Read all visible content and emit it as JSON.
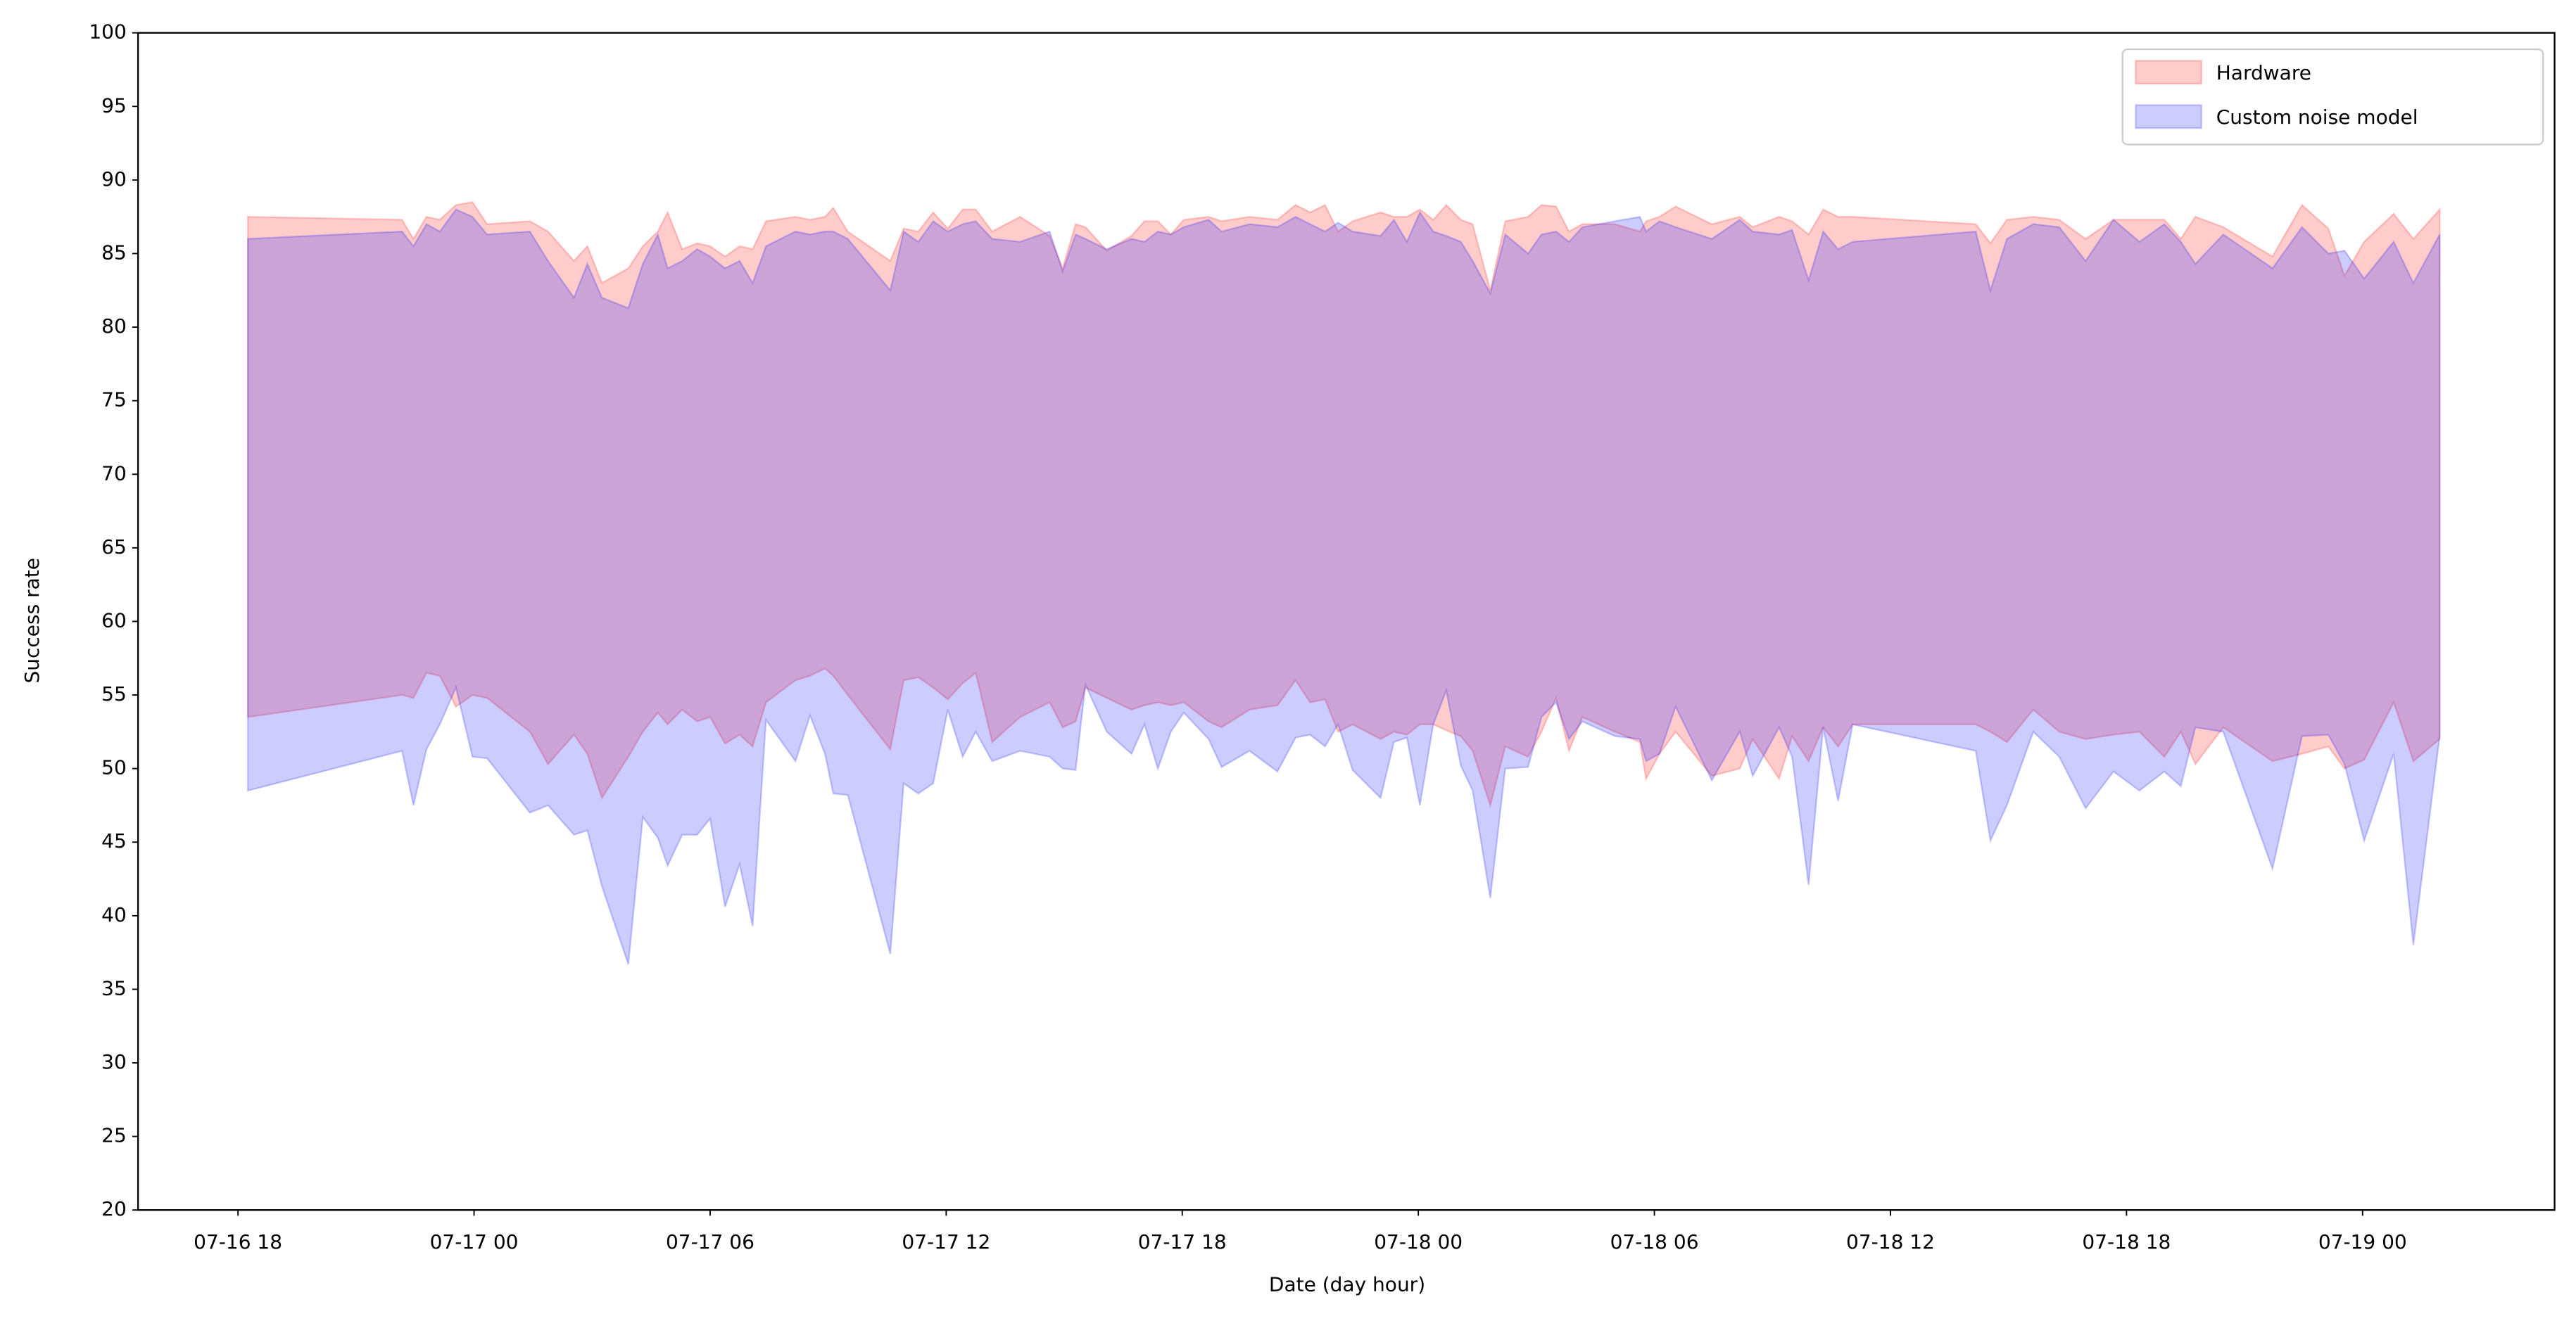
{
  "chart_data": {
    "type": "area-range",
    "xlabel": "Date (day hour)",
    "ylabel": "Success rate",
    "xlim": [
      15.46,
      76.88
    ],
    "ylim": [
      20,
      100
    ],
    "xticks": [
      {
        "value": 18,
        "label": "07-16 18"
      },
      {
        "value": 24,
        "label": "07-17 00"
      },
      {
        "value": 30,
        "label": "07-17 06"
      },
      {
        "value": 36,
        "label": "07-17 12"
      },
      {
        "value": 42,
        "label": "07-17 18"
      },
      {
        "value": 48,
        "label": "07-18 00"
      },
      {
        "value": 54,
        "label": "07-18 06"
      },
      {
        "value": 60,
        "label": "07-18 12"
      },
      {
        "value": 66,
        "label": "07-18 18"
      },
      {
        "value": 72,
        "label": "07-19 00"
      }
    ],
    "yticks": [
      20,
      25,
      30,
      35,
      40,
      45,
      50,
      55,
      60,
      65,
      70,
      75,
      80,
      85,
      90,
      95,
      100
    ],
    "legend": "upper right",
    "x": [
      18.25,
      22.17,
      22.46,
      22.79,
      23.13,
      23.54,
      23.96,
      24.33,
      25.42,
      25.88,
      26.54,
      26.88,
      27.25,
      27.92,
      28.29,
      28.67,
      28.92,
      29.29,
      29.67,
      30,
      30.38,
      30.75,
      31.08,
      31.42,
      32.17,
      32.54,
      32.92,
      33.13,
      33.5,
      34.58,
      34.92,
      35.29,
      35.67,
      36.04,
      36.42,
      36.75,
      37.17,
      37.88,
      38.63,
      38.96,
      39.29,
      39.54,
      40.08,
      40.71,
      41.04,
      41.38,
      41.71,
      42.04,
      42.67,
      43,
      43.71,
      44.42,
      44.88,
      45.25,
      45.63,
      45.96,
      46.33,
      47.04,
      47.38,
      47.71,
      48.04,
      48.38,
      48.71,
      49.08,
      49.38,
      49.83,
      50.21,
      50.79,
      51.13,
      51.5,
      51.83,
      52.17,
      53,
      53.63,
      53.79,
      54.13,
      54.54,
      55.46,
      56.17,
      56.5,
      57.17,
      57.5,
      57.92,
      58.29,
      58.67,
      59.04,
      62.17,
      62.54,
      62.96,
      63.63,
      64.29,
      64.96,
      65.67,
      66.33,
      66.96,
      67.38,
      67.75,
      68.46,
      69.71,
      70.46,
      71.13,
      71.54,
      72.04,
      72.79,
      73.29,
      73.96
    ],
    "series": [
      {
        "name": "Hardware",
        "color": "#ff0000",
        "upper": [
          87.5,
          87.3,
          86,
          87.5,
          87.3,
          88.3,
          88.5,
          87,
          87.2,
          86.5,
          84.5,
          85.5,
          83,
          84,
          85.5,
          86.5,
          87.8,
          85.3,
          85.7,
          85.5,
          84.8,
          85.5,
          85.3,
          87.2,
          87.5,
          87.3,
          87.5,
          88.1,
          86.5,
          84.5,
          86.7,
          86.5,
          87.8,
          86.7,
          88,
          88,
          86.5,
          87.5,
          86.2,
          84,
          87,
          86.8,
          85.2,
          86.2,
          87.2,
          87.2,
          86.3,
          87.3,
          87.5,
          87.2,
          87.5,
          87.3,
          88.3,
          87.8,
          88.3,
          86.5,
          87.2,
          87.8,
          87.5,
          87.5,
          88,
          87.3,
          88.3,
          87.3,
          87,
          82.5,
          87.2,
          87.5,
          88.3,
          88.2,
          86.5,
          87,
          87,
          86.5,
          87.2,
          87.5,
          88.2,
          87,
          87.5,
          86.8,
          87.5,
          87.2,
          86.3,
          88,
          87.5,
          87.5,
          87,
          85.7,
          87.3,
          87.5,
          87.3,
          86,
          87.3,
          87.3,
          87.3,
          86,
          87.5,
          86.8,
          84.8,
          88.3,
          86.7,
          83.5,
          85.8,
          87.7,
          86,
          88
        ],
        "lower": [
          53.5,
          55,
          54.8,
          56.5,
          56.3,
          54.2,
          55,
          54.8,
          52.5,
          50.3,
          52.3,
          51,
          48,
          50.8,
          52.5,
          53.8,
          53,
          54,
          53.2,
          53.5,
          51.7,
          52.3,
          51.5,
          54.5,
          56,
          56.3,
          56.8,
          56.3,
          55,
          51.3,
          56,
          56.2,
          55.5,
          54.7,
          55.8,
          56.5,
          51.8,
          53.5,
          54.5,
          52.8,
          53.2,
          55.5,
          54.8,
          54,
          54.3,
          54.5,
          54.3,
          54.5,
          53.2,
          52.8,
          54,
          54.3,
          56,
          54.5,
          54.7,
          52.5,
          53,
          52,
          52.5,
          52.3,
          53,
          53,
          52.6,
          52.2,
          51.2,
          47.5,
          51.5,
          50.8,
          52.5,
          54.8,
          51.2,
          53.5,
          52.5,
          51.8,
          49.3,
          51,
          52.5,
          49.5,
          50,
          52,
          49.3,
          52.2,
          50.5,
          52.8,
          51.5,
          53,
          53,
          52.5,
          51.8,
          54,
          52.5,
          52,
          52.3,
          52.5,
          50.8,
          52.5,
          50.3,
          52.8,
          50.5,
          51,
          51.5,
          50,
          50.6,
          54.5,
          50.5,
          52
        ]
      },
      {
        "name": "Custom noise model",
        "color": "#0000ff",
        "upper": [
          86,
          86.5,
          85.5,
          87,
          86.5,
          88,
          87.5,
          86.3,
          86.5,
          84.5,
          82,
          84.3,
          82,
          81.3,
          84.3,
          86.3,
          84,
          84.5,
          85.3,
          84.8,
          84,
          84.5,
          83,
          85.5,
          86.5,
          86.3,
          86.5,
          86.5,
          86,
          82.5,
          86.5,
          85.8,
          87.2,
          86.5,
          87,
          87.2,
          86,
          85.8,
          86.5,
          83.8,
          86.3,
          86,
          85.3,
          86,
          85.8,
          86.5,
          86.3,
          86.8,
          87.3,
          86.5,
          87,
          86.8,
          87.5,
          87,
          86.5,
          87.1,
          86.5,
          86.2,
          87.3,
          85.8,
          87.8,
          86.5,
          86.2,
          85.8,
          84.5,
          82.3,
          86.3,
          85,
          86.3,
          86.5,
          85.8,
          86.8,
          87.2,
          87.5,
          86.5,
          87.2,
          86.8,
          86,
          87.3,
          86.5,
          86.3,
          86.6,
          83.2,
          86.5,
          85.3,
          85.8,
          86.5,
          82.5,
          86,
          87,
          86.8,
          84.5,
          87.3,
          85.8,
          87,
          85.8,
          84.3,
          86.3,
          84,
          86.8,
          85,
          85.2,
          83.3,
          85.8,
          83,
          86.3
        ],
        "lower": [
          48.5,
          51.2,
          47.5,
          51.3,
          53,
          55.5,
          50.8,
          50.7,
          47,
          47.5,
          45.5,
          45.8,
          42,
          36.7,
          46.7,
          45.3,
          43.4,
          45.5,
          45.5,
          46.6,
          40.6,
          43.5,
          39.3,
          53.3,
          50.5,
          53.6,
          51,
          48.3,
          48.2,
          37.4,
          49,
          48.3,
          49,
          54,
          50.8,
          52.5,
          50.5,
          51.2,
          50.8,
          50,
          49.9,
          55.7,
          52.5,
          51,
          53,
          50,
          52.5,
          53.8,
          52,
          50.1,
          51.2,
          49.8,
          52.1,
          52.3,
          51.5,
          53,
          49.9,
          48,
          51.8,
          52.1,
          47.5,
          53,
          55.3,
          50.2,
          48.5,
          41.2,
          50,
          50.1,
          53.5,
          54.5,
          52,
          53.2,
          52.2,
          52,
          50.5,
          51,
          54.2,
          49.2,
          52.5,
          49.5,
          52.8,
          50.8,
          42.1,
          52.8,
          47.8,
          53,
          51.2,
          45.1,
          47.5,
          52.5,
          50.8,
          47.3,
          49.8,
          48.5,
          49.8,
          48.8,
          52.8,
          52.5,
          43.2,
          52.2,
          52.3,
          50.3,
          45.1,
          51,
          38,
          52.2
        ]
      }
    ]
  }
}
